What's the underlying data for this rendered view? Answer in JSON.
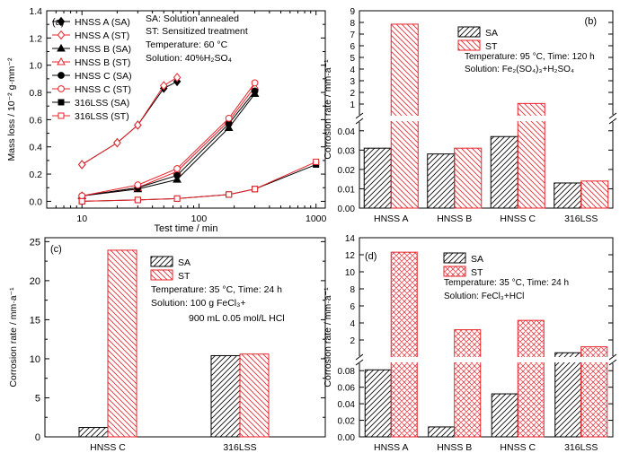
{
  "chart_data": [
    {
      "panel": "(a)",
      "type": "line",
      "xlabel": "Test time / min",
      "ylabel": "Mass loss / 10⁻² g·mm⁻²",
      "xscale": "log",
      "xlim": [
        5,
        1200
      ],
      "ylim": [
        -0.05,
        1.4
      ],
      "xticks": [
        10,
        100,
        1000
      ],
      "xtick_labels": [
        "10",
        "100",
        "1000"
      ],
      "yticks": [
        0.0,
        0.2,
        0.4,
        0.6,
        0.8,
        1.0,
        1.2,
        1.4
      ],
      "ytick_labels": [
        "0.0",
        "0.2",
        "0.4",
        "0.6",
        "0.8",
        "1.0",
        "1.2",
        "1.4"
      ],
      "legend_position": "top-left",
      "annotations": [
        "SA: Solution annealed",
        "ST: Sensitized treatment",
        "Temperature: 60 °C",
        "Solution: 40%H₂SO₄"
      ],
      "series": [
        {
          "name": "HNSS A (SA)",
          "marker": "diamond",
          "filled": true,
          "x": [
            10,
            20,
            30,
            50,
            65
          ],
          "y": [
            0.27,
            0.43,
            0.56,
            0.83,
            0.88
          ]
        },
        {
          "name": "HNSS A (ST)",
          "marker": "diamond",
          "filled": false,
          "x": [
            10,
            20,
            30,
            50,
            65
          ],
          "y": [
            0.27,
            0.43,
            0.56,
            0.85,
            0.91
          ]
        },
        {
          "name": "HNSS B (SA)",
          "marker": "triangle",
          "filled": true,
          "x": [
            10,
            30,
            65,
            180,
            300
          ],
          "y": [
            0.04,
            0.09,
            0.16,
            0.54,
            0.79
          ]
        },
        {
          "name": "HNSS B (ST)",
          "marker": "triangle",
          "filled": false,
          "x": [
            10,
            30,
            65,
            180,
            300
          ],
          "y": [
            0.04,
            0.1,
            0.22,
            0.59,
            0.84
          ]
        },
        {
          "name": "HNSS C (SA)",
          "marker": "circle",
          "filled": true,
          "x": [
            10,
            30,
            65,
            180,
            300
          ],
          "y": [
            0.04,
            0.1,
            0.19,
            0.57,
            0.81
          ]
        },
        {
          "name": "HNSS C (ST)",
          "marker": "circle",
          "filled": false,
          "x": [
            10,
            30,
            65,
            180,
            300
          ],
          "y": [
            0.04,
            0.12,
            0.24,
            0.61,
            0.87
          ]
        },
        {
          "name": "316LSS (SA)",
          "marker": "square",
          "filled": true,
          "x": [
            10,
            30,
            65,
            180,
            300,
            1000
          ],
          "y": [
            0.0,
            0.01,
            0.02,
            0.05,
            0.09,
            0.27
          ]
        },
        {
          "name": "316LSS (ST)",
          "marker": "square",
          "filled": false,
          "x": [
            10,
            30,
            65,
            180,
            300,
            1000
          ],
          "y": [
            0.0,
            0.01,
            0.02,
            0.05,
            0.09,
            0.29
          ]
        }
      ]
    },
    {
      "panel": "(b)",
      "type": "bar",
      "ylabel": "Corrosion rate / mm·a⁻¹",
      "categories": [
        "HNSS A",
        "HNSS B",
        "HNSS C",
        "316LSS"
      ],
      "series": [
        {
          "name": "SA",
          "values": [
            0.031,
            0.028,
            0.037,
            0.013
          ]
        },
        {
          "name": "ST",
          "values": [
            7.85,
            0.031,
            1.05,
            0.014
          ]
        }
      ],
      "axis_break": true,
      "lower_ylim": [
        0,
        0.045
      ],
      "lower_yticks": [
        0.0,
        0.01,
        0.02,
        0.03,
        0.04
      ],
      "lower_ytick_labels": [
        "0.00",
        "0.01",
        "0.02",
        "0.03",
        "0.04"
      ],
      "upper_ylim": [
        0,
        9
      ],
      "upper_yticks": [
        1,
        2,
        3,
        4,
        5,
        6,
        7,
        8,
        9
      ],
      "upper_ytick_labels": [
        "1",
        "2",
        "3",
        "4",
        "5",
        "6",
        "7",
        "8",
        "9"
      ],
      "legend_position": "top-center",
      "annotations": [
        "Temperature: 95 °C, Time: 120 h",
        "Solution: Fe₂(SO₄)₃+H₂SO₄"
      ]
    },
    {
      "panel": "(c)",
      "type": "bar",
      "ylabel": "Corrosion rate / mm·a⁻¹",
      "categories": [
        "HNSS C",
        "316LSS"
      ],
      "series": [
        {
          "name": "SA",
          "values": [
            1.2,
            10.4
          ]
        },
        {
          "name": "ST",
          "values": [
            23.9,
            10.6
          ]
        }
      ],
      "ylim": [
        0,
        25.5
      ],
      "yticks": [
        0,
        5,
        10,
        15,
        20,
        25
      ],
      "ytick_labels": [
        "0",
        "5",
        "10",
        "15",
        "20",
        "25"
      ],
      "legend_position": "top-center",
      "annotations": [
        "Temperature: 35 °C, Time: 24 h",
        "Solution: 100 g FeCl₃+",
        "900 mL 0.05 mol/L HCl"
      ]
    },
    {
      "panel": "(d)",
      "type": "bar",
      "ylabel": "Corrosion rate / mm·a⁻¹",
      "categories": [
        "HNSS A",
        "HNSS B",
        "HNSS C",
        "316LSS"
      ],
      "series": [
        {
          "name": "SA",
          "values": [
            0.081,
            0.012,
            0.052,
            0.5
          ]
        },
        {
          "name": "ST",
          "values": [
            12.3,
            3.2,
            4.3,
            1.2
          ]
        }
      ],
      "axis_break": true,
      "lower_ylim": [
        0,
        0.09
      ],
      "lower_yticks": [
        0.0,
        0.02,
        0.04,
        0.06,
        0.08
      ],
      "lower_ytick_labels": [
        "0.00",
        "0.02",
        "0.04",
        "0.06",
        "0.08"
      ],
      "upper_ylim": [
        0,
        14
      ],
      "upper_yticks": [
        2,
        4,
        6,
        8,
        10,
        12,
        14
      ],
      "upper_ytick_labels": [
        "2",
        "4",
        "6",
        "8",
        "10",
        "12",
        "14"
      ],
      "legend_position": "top-center",
      "annotations": [
        "Temperature: 35 °C, Time: 24 h",
        "Solution: FeCl₃+HCl"
      ]
    }
  ]
}
